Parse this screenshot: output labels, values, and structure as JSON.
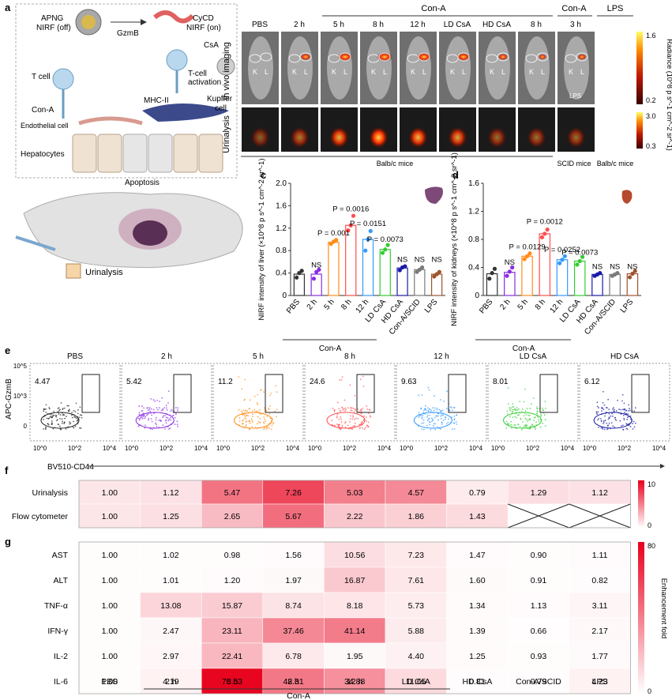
{
  "panel_letters": [
    "a",
    "b",
    "c",
    "d",
    "e",
    "f",
    "g"
  ],
  "panel_a": {
    "probe_off": "APNG",
    "probe_off_sub": "NIRF (off)",
    "enzyme": "GzmB",
    "probe_on": "CyCD",
    "probe_on_sub": "NIRF (on)",
    "csa": "CsA",
    "t_cell": "T cell",
    "con_a": "Con-A",
    "t_activation": "T-cell",
    "t_activation2": "activation",
    "mhc": "MHC-II",
    "kupffer": "Kupffer",
    "kupffer2": "cell",
    "endothelial": "Endothelial cell",
    "hepatocytes": "Hepatocytes",
    "apoptosis": "Apoptosis",
    "urinalysis": "Urinalysis"
  },
  "panel_b": {
    "group_cona": "Con-A",
    "group_cona2": "Con-A",
    "group_lps": "LPS",
    "columns": [
      "PBS",
      "2 h",
      "5 h",
      "8 h",
      "12 h",
      "LD CsA",
      "HD CsA",
      "8 h",
      "3 h"
    ],
    "row1": "In vivo imaging",
    "row2": "Urinalysis",
    "mice1": "Balb/c mice",
    "mice2": "SCID mice",
    "mice3": "Balb/c mice",
    "k": "K",
    "l": "L",
    "lps_mark": "LPS",
    "radiance_label": "Radiance (10^8 p s^-1 cm^-2 sr^-1)",
    "scale1_max": "1.6",
    "scale1_min": "0.2",
    "scale2_max": "3.0",
    "scale2_min": "0.3"
  },
  "flow": {
    "panel_titles": [
      "PBS",
      "2 h",
      "5 h",
      "8 h",
      "12 h",
      "LD CsA",
      "HD CsA"
    ],
    "percents": [
      "4.47",
      "5.42",
      "11.2",
      "24.6",
      "9.63",
      "8.01",
      "6.12"
    ],
    "colors": [
      "#222222",
      "#8a2be2",
      "#ff8c1a",
      "#ff4d4d",
      "#3399ff",
      "#33cc33",
      "#1a1aa6"
    ],
    "xlabel": "BV510-CD44",
    "ylabel": "APC-GzmB",
    "xticks": [
      "10^0",
      "10^2",
      "10^4"
    ],
    "yticks": [
      "10^5",
      "10^3",
      "0"
    ]
  },
  "heatmap_f": {
    "rows": [
      "Urinalysis",
      "Flow cytometer"
    ],
    "columns": [
      "PBS",
      "2 h",
      "5 h",
      "8 h",
      "12 h",
      "LD CsA",
      "HD CsA",
      "Con-A/SCID",
      "LPS"
    ],
    "values": [
      [
        "1.00",
        "1.12",
        "5.47",
        "7.26",
        "5.03",
        "4.57",
        "0.79",
        "1.29",
        "1.12"
      ],
      [
        "1.00",
        "1.25",
        "2.65",
        "5.67",
        "2.22",
        "1.86",
        "1.43",
        "",
        ""
      ]
    ],
    "scale_max": "10",
    "scale_min": "0"
  },
  "heatmap_g": {
    "rows": [
      "AST",
      "ALT",
      "TNF-α",
      "IFN-γ",
      "IL-2",
      "IL-6"
    ],
    "columns": [
      "PBS",
      "2 h",
      "5 h",
      "8 h",
      "12 h",
      "LD CsA",
      "HD CsA",
      "Con-A/SCID",
      "LPS"
    ],
    "values": [
      [
        "1.00",
        "1.02",
        "0.98",
        "1.56",
        "10.56",
        "7.23",
        "1.47",
        "0.90",
        "1.11"
      ],
      [
        "1.00",
        "1.01",
        "1.20",
        "1.97",
        "16.87",
        "7.61",
        "1.60",
        "0.91",
        "0.82"
      ],
      [
        "1.00",
        "13.08",
        "15.87",
        "8.74",
        "8.18",
        "5.73",
        "1.34",
        "1.13",
        "3.11"
      ],
      [
        "1.00",
        "2.47",
        "23.11",
        "37.46",
        "41.14",
        "5.88",
        "1.39",
        "0.66",
        "2.17"
      ],
      [
        "1.00",
        "2.97",
        "22.41",
        "6.78",
        "1.95",
        "4.40",
        "1.25",
        "0.93",
        "1.77"
      ],
      [
        "1.00",
        "4.19",
        "78.53",
        "42.31",
        "34.88",
        "11.65",
        "0.81",
        "0.79",
        "4.23"
      ]
    ],
    "scale_label": "Enhancement fold",
    "scale_max": "80",
    "scale_min": "0",
    "group_label": "Con-A"
  },
  "chart_data": [
    {
      "type": "bar",
      "panel": "c",
      "categories": [
        "PBS",
        "2 h",
        "5 h",
        "8 h",
        "12 h",
        "LD CsA",
        "HD CsA",
        "Con-A/SCID",
        "LPS"
      ],
      "values": [
        0.38,
        0.38,
        0.95,
        1.25,
        1.0,
        0.82,
        0.49,
        0.46,
        0.38
      ],
      "colors": [
        "#333333",
        "#8a2be2",
        "#ff8c1a",
        "#ff4d4d",
        "#3399ff",
        "#33cc33",
        "#1a1aa6",
        "#7a7a7a",
        "#a0522d"
      ],
      "ylabel": "NIRF intensity of liver (×10^8 p s^-1 cm^-2 sr^-1)",
      "ylim": [
        0,
        2.0
      ],
      "yticks": [
        "0",
        "0.4",
        "0.8",
        "1.2",
        "1.6",
        "2.0"
      ],
      "group_label": "Con-A",
      "annotations": [
        "NS",
        "P = 0.001",
        "P = 0.0016",
        "P = 0.0151",
        "P = 0.0073",
        "NS",
        "NS",
        "NS"
      ]
    },
    {
      "type": "bar",
      "panel": "d",
      "categories": [
        "PBS",
        "2 h",
        "5 h",
        "8 h",
        "12 h",
        "LD CsA",
        "HD CsA",
        "Con-A/SCID",
        "LPS"
      ],
      "values": [
        0.31,
        0.33,
        0.56,
        0.88,
        0.51,
        0.49,
        0.3,
        0.3,
        0.31
      ],
      "colors": [
        "#333333",
        "#8a2be2",
        "#ff8c1a",
        "#ff4d4d",
        "#3399ff",
        "#33cc33",
        "#1a1aa6",
        "#7a7a7a",
        "#a0522d"
      ],
      "ylabel": "NIRF intensity of kidneys (×10^8 p s^-1 cm^-2 sr^-1)",
      "ylim": [
        0,
        1.6
      ],
      "yticks": [
        "0",
        "0.4",
        "0.8",
        "1.2",
        "1.6"
      ],
      "group_label": "Con-A",
      "annotations": [
        "NS",
        "P = 0.0129",
        "P = 0.0012",
        "P = 0.0252",
        "P = 0.0073",
        "NS",
        "NS",
        "NS"
      ]
    }
  ]
}
